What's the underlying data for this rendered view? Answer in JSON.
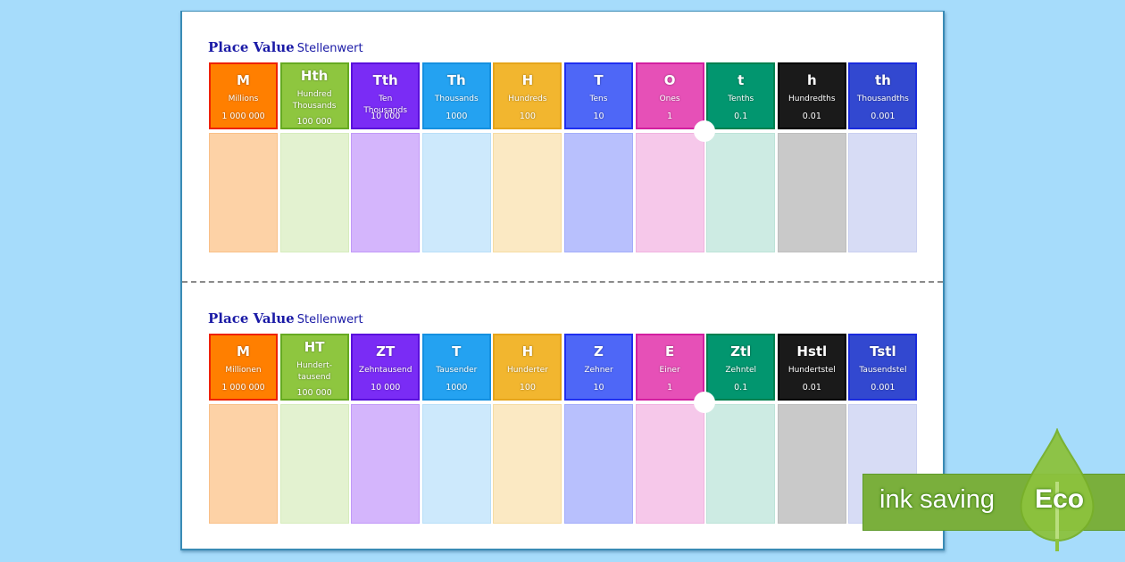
{
  "sections": [
    {
      "title_main": "Place Value",
      "title_sub": "Stellenwert",
      "columns": [
        {
          "symbol": "M",
          "name": "Millions",
          "value": "1 000 000",
          "head_color": "#ff7f00",
          "head_border": "#ee2200",
          "body_color": "#fdd2a6",
          "body_border": "#f9c088"
        },
        {
          "symbol": "Hth",
          "name": "Hundred Thousands",
          "value": "100 000",
          "head_color": "#8ec63f",
          "head_border": "#66aa22",
          "body_color": "#e3f2d0",
          "body_border": "#d6ecbd"
        },
        {
          "symbol": "Tth",
          "name": "Ten Thousands",
          "value": "10 000",
          "head_color": "#7a2cf5",
          "head_border": "#5a10dd",
          "body_color": "#d4b5fc",
          "body_border": "#c199f8"
        },
        {
          "symbol": "Th",
          "name": "Thousands",
          "value": "1000",
          "head_color": "#24a2f1",
          "head_border": "#1490e0",
          "body_color": "#cde9fc",
          "body_border": "#b9dff8"
        },
        {
          "symbol": "H",
          "name": "Hundreds",
          "value": "100",
          "head_color": "#f2b62f",
          "head_border": "#e6a51b",
          "body_color": "#fbe9c3",
          "body_border": "#f6dca3"
        },
        {
          "symbol": "T",
          "name": "Tens",
          "value": "10",
          "head_color": "#4e67f7",
          "head_border": "#1f2ff0",
          "body_color": "#b8c0fd",
          "body_border": "#a3adfa"
        },
        {
          "symbol": "O",
          "name": "Ones",
          "value": "1",
          "head_color": "#e650b7",
          "head_border": "#d21fa0",
          "body_color": "#f6c8ea",
          "body_border": "#f0b3e0"
        },
        {
          "symbol": "t",
          "name": "Tenths",
          "value": "0.1",
          "head_color": "#02966f",
          "head_border": "#00804f",
          "body_color": "#cdebe3",
          "body_border": "#bde3d8"
        },
        {
          "symbol": "h",
          "name": "Hundredths",
          "value": "0.01",
          "head_color": "#1a1a1a",
          "head_border": "#000000",
          "body_color": "#c9c9c9",
          "body_border": "#bdbdbd"
        },
        {
          "symbol": "th",
          "name": "Thousandths",
          "value": "0.001",
          "head_color": "#3248d0",
          "head_border": "#1a2bdd",
          "body_color": "#d7dcf5",
          "body_border": "#c9cff0"
        }
      ]
    },
    {
      "title_main": "Place Value",
      "title_sub": "Stellenwert",
      "columns": [
        {
          "symbol": "M",
          "name": "Millionen",
          "value": "1 000 000",
          "head_color": "#ff7f00",
          "head_border": "#ee2200",
          "body_color": "#fdd2a6",
          "body_border": "#f9c088"
        },
        {
          "symbol": "HT",
          "name": "Hundert-tausend",
          "value": "100 000",
          "head_color": "#8ec63f",
          "head_border": "#66aa22",
          "body_color": "#e3f2d0",
          "body_border": "#d6ecbd"
        },
        {
          "symbol": "ZT",
          "name": "Zehntausend",
          "value": "10 000",
          "head_color": "#7a2cf5",
          "head_border": "#5a10dd",
          "body_color": "#d4b5fc",
          "body_border": "#c199f8"
        },
        {
          "symbol": "T",
          "name": "Tausender",
          "value": "1000",
          "head_color": "#24a2f1",
          "head_border": "#1490e0",
          "body_color": "#cde9fc",
          "body_border": "#b9dff8"
        },
        {
          "symbol": "H",
          "name": "Hunderter",
          "value": "100",
          "head_color": "#f2b62f",
          "head_border": "#e6a51b",
          "body_color": "#fbe9c3",
          "body_border": "#f6dca3"
        },
        {
          "symbol": "Z",
          "name": "Zehner",
          "value": "10",
          "head_color": "#4e67f7",
          "head_border": "#1f2ff0",
          "body_color": "#b8c0fd",
          "body_border": "#a3adfa"
        },
        {
          "symbol": "E",
          "name": "Einer",
          "value": "1",
          "head_color": "#e650b7",
          "head_border": "#d21fa0",
          "body_color": "#f6c8ea",
          "body_border": "#f0b3e0"
        },
        {
          "symbol": "Ztl",
          "name": "Zehntel",
          "value": "0.1",
          "head_color": "#02966f",
          "head_border": "#00804f",
          "body_color": "#cdebe3",
          "body_border": "#bde3d8"
        },
        {
          "symbol": "Hstl",
          "name": "Hundertstel",
          "value": "0.01",
          "head_color": "#1a1a1a",
          "head_border": "#000000",
          "body_color": "#c9c9c9",
          "body_border": "#bdbdbd"
        },
        {
          "symbol": "Tstl",
          "name": "Tausendstel",
          "value": "0.001",
          "head_color": "#3248d0",
          "head_border": "#1a2bdd",
          "body_color": "#d7dcf5",
          "body_border": "#c9cff0"
        }
      ]
    }
  ],
  "eco_banner": {
    "text": "ink saving",
    "label": "Eco",
    "color": "#7aaf3c"
  }
}
